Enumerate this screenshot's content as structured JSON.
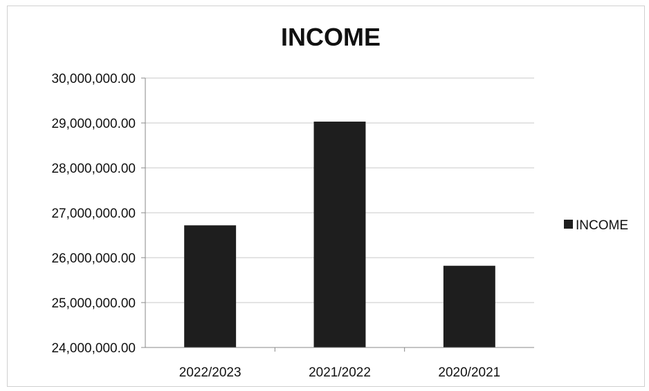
{
  "chart_data": {
    "type": "bar",
    "title": "INCOME",
    "categories": [
      "2022/2023",
      "2021/2022",
      "2020/2021"
    ],
    "series": [
      {
        "name": "INCOME",
        "values": [
          26720000,
          29030000,
          25820000
        ]
      }
    ],
    "y_tick_labels": [
      "24,000,000.00",
      "25,000,000.00",
      "26,000,000.00",
      "27,000,000.00",
      "28,000,000.00",
      "29,000,000.00",
      "30,000,000.00"
    ],
    "ylim": [
      24000000,
      30000000
    ],
    "ytick_step": 1000000,
    "grid": true,
    "legend_position": "right",
    "bar_color": "#1e1e1e"
  }
}
